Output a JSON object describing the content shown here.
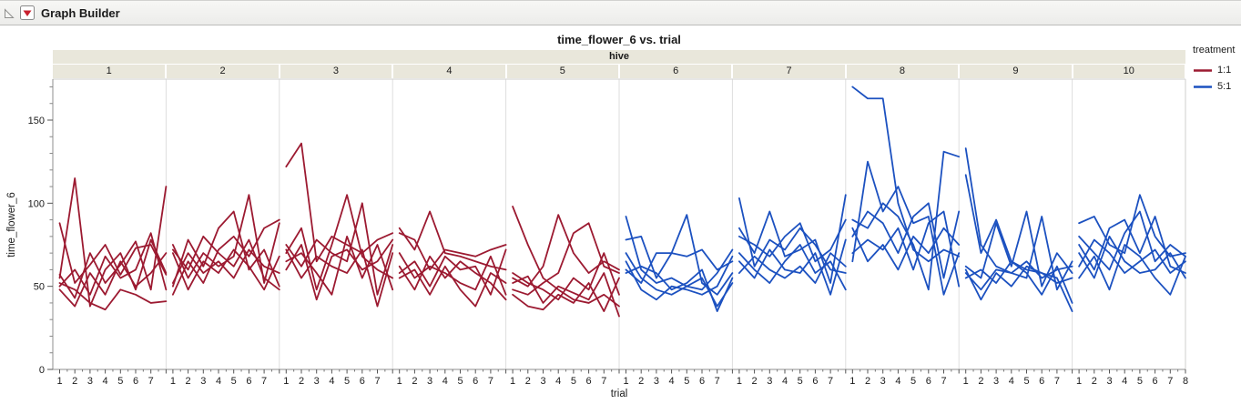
{
  "window": {
    "title": "Graph Builder"
  },
  "chart_data": {
    "type": "line",
    "title": "time_flower_6 vs. trial",
    "facet_variable": "hive",
    "facets": [
      "1",
      "2",
      "3",
      "4",
      "5",
      "6",
      "7",
      "8",
      "9",
      "10"
    ],
    "xlabel": "trial",
    "ylabel": "time_flower_6",
    "x_ticks": [
      1,
      2,
      3,
      4,
      5,
      6,
      7,
      8
    ],
    "ylim": [
      0,
      175
    ],
    "y_major_ticks": [
      0,
      50,
      100,
      150
    ],
    "y_minor_step": 10,
    "grid": false,
    "legend": {
      "title": "treatment",
      "entries": [
        {
          "label": "1:1",
          "color": "#9c1a31"
        },
        {
          "label": "5:1",
          "color": "#1c51c0"
        }
      ]
    },
    "facet_treatments": [
      "1:1",
      "1:1",
      "1:1",
      "1:1",
      "1:1",
      "5:1",
      "5:1",
      "5:1",
      "5:1",
      "5:1"
    ],
    "series_by_facet": [
      [
        [
          88,
          52,
          63,
          75,
          57,
          73,
          75,
          57
        ],
        [
          55,
          115,
          38,
          60,
          70,
          48,
          78,
          58
        ],
        [
          57,
          43,
          70,
          52,
          63,
          77,
          48,
          110
        ],
        [
          50,
          60,
          45,
          68,
          55,
          60,
          82,
          48
        ],
        [
          52,
          48,
          40,
          36,
          48,
          45,
          40,
          41
        ],
        [
          48,
          38,
          58,
          45,
          65,
          50,
          58,
          70
        ]
      ],
      [
        [
          75,
          55,
          70,
          62,
          68,
          105,
          52,
          88
        ],
        [
          50,
          78,
          62,
          85,
          95,
          60,
          72,
          50
        ],
        [
          72,
          60,
          80,
          70,
          62,
          78,
          55,
          48
        ],
        [
          45,
          65,
          52,
          72,
          80,
          68,
          85,
          90
        ],
        [
          70,
          48,
          65,
          58,
          72,
          62,
          48,
          68
        ],
        [
          52,
          70,
          58,
          65,
          55,
          72,
          62,
          58
        ]
      ],
      [
        [
          122,
          136,
          65,
          80,
          75,
          70,
          78,
          82
        ],
        [
          70,
          85,
          48,
          75,
          105,
          68,
          60,
          55
        ],
        [
          75,
          62,
          78,
          70,
          65,
          100,
          45,
          75
        ],
        [
          65,
          70,
          58,
          45,
          80,
          55,
          75,
          48
        ],
        [
          72,
          55,
          68,
          62,
          58,
          72,
          38,
          70
        ],
        [
          60,
          75,
          42,
          68,
          72,
          60,
          65,
          78
        ]
      ],
      [
        [
          85,
          72,
          95,
          70,
          68,
          65,
          62,
          60
        ],
        [
          82,
          78,
          60,
          72,
          70,
          68,
          72,
          75
        ],
        [
          70,
          55,
          62,
          58,
          52,
          48,
          68,
          45
        ],
        [
          58,
          65,
          50,
          68,
          60,
          62,
          45,
          72
        ],
        [
          62,
          48,
          68,
          55,
          65,
          58,
          52,
          42
        ],
        [
          55,
          60,
          45,
          62,
          48,
          38,
          58,
          52
        ]
      ],
      [
        [
          98,
          75,
          55,
          48,
          42,
          40,
          45,
          38
        ],
        [
          55,
          50,
          62,
          93,
          70,
          58,
          65,
          60
        ],
        [
          48,
          45,
          52,
          58,
          82,
          88,
          62,
          58
        ],
        [
          58,
          52,
          48,
          42,
          55,
          48,
          70,
          45
        ],
        [
          45,
          38,
          36,
          45,
          40,
          52,
          35,
          55
        ],
        [
          52,
          56,
          40,
          50,
          46,
          42,
          58,
          32
        ]
      ],
      [
        [
          92,
          60,
          52,
          55,
          50,
          48,
          58,
          72
        ],
        [
          78,
          80,
          55,
          70,
          68,
          72,
          60,
          65
        ],
        [
          60,
          52,
          70,
          70,
          93,
          52,
          45,
          58
        ],
        [
          70,
          55,
          48,
          45,
          50,
          55,
          38,
          52
        ],
        [
          65,
          48,
          42,
          50,
          48,
          45,
          50,
          68
        ],
        [
          58,
          62,
          58,
          48,
          52,
          60,
          35,
          55
        ]
      ],
      [
        [
          103,
          62,
          78,
          72,
          85,
          75,
          60,
          58
        ],
        [
          85,
          70,
          95,
          68,
          72,
          78,
          52,
          105
        ],
        [
          80,
          75,
          68,
          80,
          88,
          65,
          72,
          90
        ],
        [
          65,
          55,
          72,
          60,
          58,
          70,
          45,
          78
        ],
        [
          70,
          60,
          52,
          65,
          75,
          58,
          65,
          48
        ],
        [
          58,
          68,
          60,
          55,
          62,
          52,
          70,
          62
        ]
      ],
      [
        [
          170,
          163,
          163,
          100,
          72,
          65,
          72,
          68
        ],
        [
          65,
          125,
          95,
          110,
          88,
          92,
          45,
          70
        ],
        [
          90,
          85,
          100,
          92,
          75,
          48,
          131,
          128
        ],
        [
          80,
          95,
          88,
          70,
          92,
          100,
          55,
          95
        ],
        [
          70,
          78,
          72,
          85,
          60,
          88,
          95,
          50
        ],
        [
          85,
          65,
          75,
          60,
          80,
          70,
          85,
          75
        ]
      ],
      [
        [
          133,
          75,
          62,
          58,
          65,
          55,
          60,
          62
        ],
        [
          117,
          70,
          90,
          65,
          60,
          58,
          52,
          55
        ],
        [
          62,
          55,
          88,
          62,
          95,
          50,
          70,
          58
        ],
        [
          58,
          48,
          60,
          58,
          55,
          92,
          48,
          65
        ],
        [
          55,
          60,
          52,
          65,
          58,
          45,
          62,
          40
        ],
        [
          60,
          42,
          58,
          50,
          62,
          58,
          55,
          35
        ]
      ],
      [
        [
          88,
          92,
          75,
          70,
          105,
          80,
          68,
          70
        ],
        [
          75,
          60,
          85,
          90,
          70,
          92,
          62,
          58
        ],
        [
          80,
          70,
          60,
          82,
          95,
          65,
          75,
          68
        ],
        [
          62,
          78,
          70,
          58,
          65,
          72,
          58,
          65
        ],
        [
          70,
          55,
          80,
          65,
          58,
          60,
          70,
          55
        ],
        [
          55,
          68,
          48,
          75,
          68,
          55,
          45,
          68
        ]
      ]
    ]
  }
}
